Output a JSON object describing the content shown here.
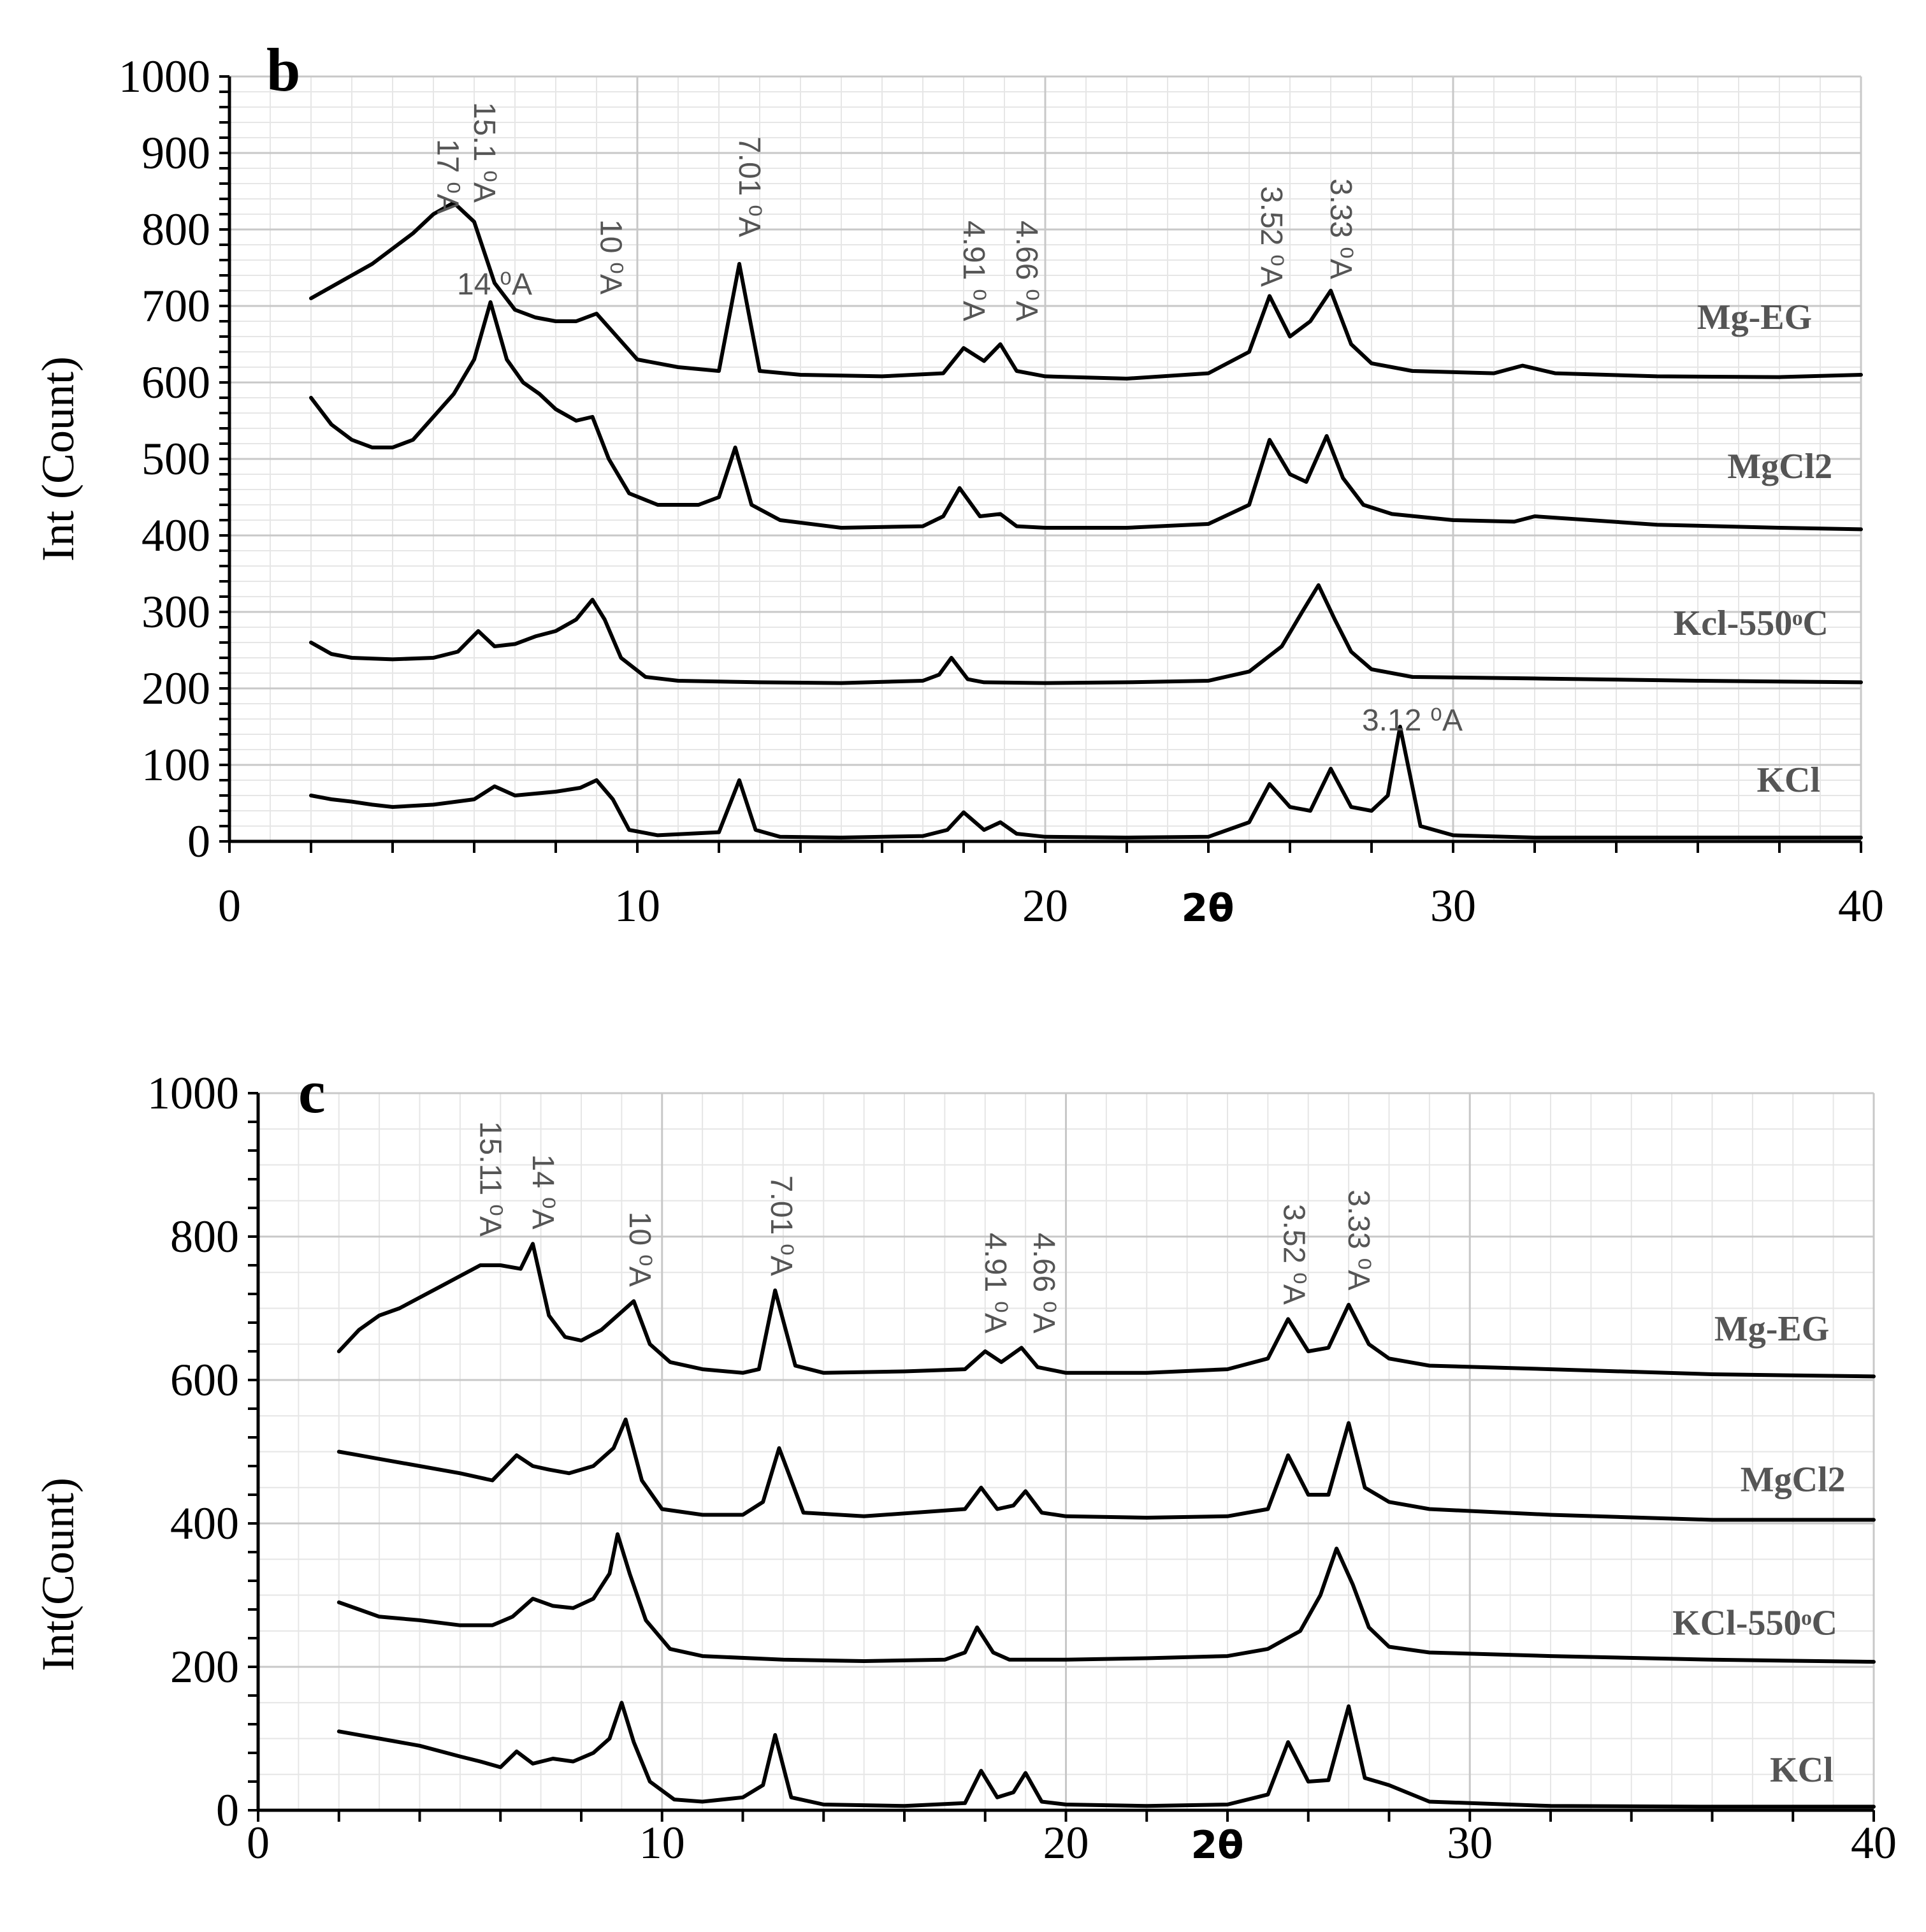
{
  "chart_data": [
    {
      "panel": "b",
      "type": "line",
      "title": "",
      "xlabel": "2θ",
      "ylabel": "Int (Count)",
      "xlim": [
        0,
        40
      ],
      "ylim": [
        0,
        1000
      ],
      "x_ticks": [
        "0",
        "10",
        "20",
        "30",
        "40"
      ],
      "y_ticks": [
        "0",
        "100",
        "200",
        "300",
        "400",
        "500",
        "600",
        "700",
        "800",
        "900",
        "1000"
      ],
      "y_tick_values": [
        0,
        100,
        200,
        300,
        400,
        500,
        600,
        700,
        800,
        900,
        1000
      ],
      "grid": true,
      "series": [
        {
          "name": "Mg-EG",
          "label_x": 38.8,
          "label_y": 670,
          "x": [
            2.0,
            2.5,
            3.0,
            3.5,
            4.0,
            4.5,
            5.0,
            5.5,
            6.0,
            6.5,
            7.0,
            7.5,
            8.0,
            8.5,
            9.0,
            9.5,
            10.0,
            11.0,
            12.0,
            12.5,
            13.0,
            14.0,
            16.0,
            17.5,
            18.0,
            18.5,
            18.9,
            19.3,
            20.0,
            22.0,
            24.0,
            25.0,
            25.5,
            26.0,
            26.5,
            27.0,
            27.5,
            28.0,
            29.0,
            31.0,
            31.7,
            32.5,
            35.0,
            38.0,
            40.0
          ],
          "values": [
            710,
            725,
            740,
            755,
            775,
            795,
            820,
            835,
            810,
            730,
            695,
            685,
            680,
            680,
            690,
            660,
            630,
            620,
            615,
            755,
            615,
            610,
            608,
            612,
            645,
            628,
            650,
            615,
            608,
            605,
            612,
            640,
            713,
            660,
            680,
            720,
            650,
            625,
            615,
            612,
            622,
            612,
            608,
            607,
            610
          ]
        },
        {
          "name": "MgCl2",
          "label_x": 39.3,
          "label_y": 475,
          "x": [
            2.0,
            2.5,
            3.0,
            3.5,
            4.0,
            4.5,
            5.0,
            5.5,
            6.0,
            6.4,
            6.8,
            7.2,
            7.6,
            8.0,
            8.5,
            8.9,
            9.3,
            9.8,
            10.5,
            11.5,
            12.0,
            12.4,
            12.8,
            13.5,
            15.0,
            17.0,
            17.5,
            17.9,
            18.4,
            18.9,
            19.3,
            20.0,
            22.0,
            24.0,
            25.0,
            25.5,
            26.0,
            26.4,
            26.9,
            27.3,
            27.8,
            28.5,
            30.0,
            31.5,
            32.0,
            35.0,
            38.0,
            40.0
          ],
          "values": [
            580,
            545,
            525,
            515,
            515,
            525,
            555,
            585,
            630,
            705,
            630,
            600,
            585,
            565,
            550,
            555,
            500,
            455,
            440,
            440,
            450,
            515,
            440,
            420,
            410,
            412,
            425,
            462,
            425,
            428,
            412,
            410,
            410,
            415,
            440,
            525,
            480,
            470,
            530,
            475,
            440,
            428,
            420,
            418,
            425,
            414,
            410,
            408
          ]
        },
        {
          "name": "Kcl-550ᵒC",
          "label_x": 39.2,
          "label_y": 270,
          "x": [
            2.0,
            2.5,
            3.0,
            4.0,
            5.0,
            5.6,
            6.1,
            6.5,
            7.0,
            7.5,
            8.0,
            8.5,
            8.9,
            9.2,
            9.6,
            10.2,
            11.0,
            13.0,
            15.0,
            17.0,
            17.4,
            17.7,
            18.1,
            18.5,
            20.0,
            22.0,
            24.0,
            25.0,
            25.8,
            26.3,
            26.7,
            27.1,
            27.5,
            28.0,
            29.0,
            32.0,
            36.0,
            40.0
          ],
          "values": [
            260,
            245,
            240,
            238,
            240,
            248,
            275,
            255,
            258,
            268,
            275,
            290,
            316,
            290,
            240,
            215,
            210,
            208,
            207,
            210,
            218,
            240,
            212,
            208,
            207,
            208,
            210,
            222,
            255,
            300,
            335,
            290,
            248,
            225,
            215,
            213,
            210,
            208
          ]
        },
        {
          "name": "KCl",
          "label_x": 39.0,
          "label_y": 65,
          "x": [
            2.0,
            2.5,
            3.0,
            3.5,
            4.0,
            5.0,
            6.0,
            6.5,
            7.0,
            8.0,
            8.6,
            9.0,
            9.4,
            9.8,
            10.5,
            12.0,
            12.5,
            12.9,
            13.5,
            15.0,
            17.0,
            17.6,
            18.0,
            18.5,
            18.9,
            19.3,
            20.0,
            22.0,
            24.0,
            25.0,
            25.5,
            26.0,
            26.5,
            27.0,
            27.5,
            28.0,
            28.4,
            28.7,
            29.2,
            30.0,
            32.0,
            36.0,
            40.0
          ],
          "values": [
            60,
            55,
            52,
            48,
            45,
            48,
            55,
            72,
            60,
            65,
            70,
            80,
            55,
            15,
            8,
            12,
            80,
            15,
            6,
            5,
            7,
            15,
            38,
            15,
            25,
            10,
            6,
            5,
            6,
            25,
            75,
            45,
            40,
            95,
            45,
            40,
            60,
            150,
            20,
            8,
            5,
            5,
            5
          ]
        }
      ],
      "annotations": [
        {
          "text": "17 ⁰A",
          "x": 5.1,
          "y": 820,
          "rotate": true
        },
        {
          "text": "15.1 ⁰A",
          "x": 6.0,
          "y": 835,
          "rotate": true
        },
        {
          "text": "14 ⁰A",
          "x": 6.5,
          "y": 715,
          "rotate": false
        },
        {
          "text": "10 ⁰A",
          "x": 9.1,
          "y": 715,
          "rotate": true
        },
        {
          "text": "7.01 ⁰A",
          "x": 12.5,
          "y": 790,
          "rotate": true
        },
        {
          "text": "4.91 ⁰A",
          "x": 18.0,
          "y": 680,
          "rotate": true
        },
        {
          "text": "4.66 ⁰A",
          "x": 19.3,
          "y": 680,
          "rotate": true
        },
        {
          "text": "3.52 ⁰A",
          "x": 25.3,
          "y": 725,
          "rotate": true
        },
        {
          "text": "3.33 ⁰A",
          "x": 27.0,
          "y": 735,
          "rotate": true
        },
        {
          "text": "3.12 ⁰A",
          "x": 29.0,
          "y": 145,
          "rotate": false
        }
      ]
    },
    {
      "panel": "c",
      "type": "line",
      "title": "",
      "xlabel": "2θ",
      "ylabel": "Int(Count)",
      "xlim": [
        0,
        40
      ],
      "ylim": [
        0,
        1000
      ],
      "x_ticks": [
        "0",
        "10",
        "20",
        "30",
        "40"
      ],
      "y_ticks": [
        "0",
        "200",
        "400",
        "600",
        "800",
        "1000"
      ],
      "y_tick_values": [
        0,
        200,
        400,
        600,
        800,
        1000
      ],
      "grid": true,
      "series": [
        {
          "name": "Mg-EG",
          "label_x": 38.9,
          "label_y": 655,
          "x": [
            2.0,
            2.5,
            3.0,
            3.5,
            4.0,
            4.5,
            5.0,
            5.5,
            6.0,
            6.5,
            6.8,
            7.2,
            7.6,
            8.0,
            8.5,
            9.0,
            9.3,
            9.7,
            10.2,
            11.0,
            12.0,
            12.4,
            12.8,
            13.3,
            14.0,
            16.0,
            17.5,
            18.0,
            18.4,
            18.9,
            19.3,
            20.0,
            22.0,
            24.0,
            25.0,
            25.5,
            26.0,
            26.5,
            27.0,
            27.5,
            28.0,
            29.0,
            32.0,
            36.0,
            40.0
          ],
          "values": [
            640,
            670,
            690,
            700,
            715,
            730,
            745,
            760,
            760,
            755,
            790,
            690,
            660,
            655,
            670,
            695,
            710,
            650,
            625,
            615,
            610,
            615,
            725,
            620,
            610,
            612,
            615,
            640,
            625,
            645,
            618,
            610,
            610,
            615,
            630,
            685,
            640,
            645,
            705,
            650,
            630,
            620,
            615,
            608,
            605
          ]
        },
        {
          "name": "MgCl2",
          "label_x": 39.3,
          "label_y": 445,
          "x": [
            2.0,
            2.5,
            3.0,
            4.0,
            5.0,
            5.8,
            6.4,
            6.8,
            7.2,
            7.7,
            8.3,
            8.8,
            9.1,
            9.5,
            10.0,
            11.0,
            12.0,
            12.5,
            12.9,
            13.5,
            15.0,
            17.5,
            17.9,
            18.3,
            18.7,
            19.0,
            19.4,
            20.0,
            22.0,
            24.0,
            25.0,
            25.5,
            26.0,
            26.5,
            27.0,
            27.4,
            28.0,
            29.0,
            32.0,
            36.0,
            40.0
          ],
          "values": [
            500,
            495,
            490,
            480,
            470,
            460,
            495,
            480,
            475,
            470,
            480,
            505,
            545,
            460,
            420,
            412,
            412,
            430,
            505,
            415,
            410,
            420,
            450,
            420,
            425,
            445,
            415,
            410,
            408,
            410,
            420,
            495,
            440,
            440,
            540,
            450,
            430,
            420,
            412,
            405,
            405
          ]
        },
        {
          "name": "KCl-550ᵒC",
          "label_x": 39.1,
          "label_y": 245,
          "x": [
            2.0,
            2.5,
            3.0,
            4.0,
            5.0,
            5.8,
            6.3,
            6.8,
            7.3,
            7.8,
            8.3,
            8.7,
            8.9,
            9.2,
            9.6,
            10.2,
            11.0,
            13.0,
            15.0,
            17.0,
            17.5,
            17.8,
            18.2,
            18.6,
            20.0,
            22.0,
            24.0,
            25.0,
            25.8,
            26.3,
            26.7,
            27.1,
            27.5,
            28.0,
            29.0,
            32.0,
            36.0,
            40.0
          ],
          "values": [
            290,
            280,
            270,
            265,
            258,
            258,
            270,
            295,
            285,
            282,
            295,
            330,
            385,
            330,
            265,
            225,
            215,
            210,
            208,
            210,
            220,
            255,
            220,
            210,
            210,
            212,
            215,
            225,
            250,
            300,
            365,
            315,
            255,
            228,
            220,
            215,
            210,
            207
          ]
        },
        {
          "name": "KCl",
          "label_x": 39.0,
          "label_y": 40,
          "x": [
            2.0,
            2.5,
            3.0,
            4.0,
            5.0,
            5.5,
            6.0,
            6.4,
            6.8,
            7.3,
            7.8,
            8.3,
            8.7,
            9.0,
            9.3,
            9.7,
            10.3,
            11.0,
            12.0,
            12.5,
            12.8,
            13.2,
            14.0,
            16.0,
            17.5,
            17.9,
            18.3,
            18.7,
            19.0,
            19.4,
            20.0,
            22.0,
            24.0,
            25.0,
            25.5,
            26.0,
            26.5,
            27.0,
            27.4,
            28.0,
            29.0,
            32.0,
            36.0,
            40.0
          ],
          "values": [
            110,
            105,
            100,
            90,
            75,
            68,
            60,
            82,
            65,
            72,
            68,
            80,
            100,
            150,
            95,
            40,
            15,
            12,
            18,
            35,
            105,
            18,
            8,
            6,
            10,
            55,
            18,
            25,
            52,
            12,
            8,
            6,
            8,
            22,
            95,
            40,
            42,
            145,
            45,
            35,
            12,
            6,
            5,
            5
          ]
        }
      ],
      "annotations": [
        {
          "text": "15.11 ⁰A",
          "x": 5.5,
          "y": 800,
          "rotate": true
        },
        {
          "text": "14 ⁰A",
          "x": 6.8,
          "y": 810,
          "rotate": true
        },
        {
          "text": "10 ⁰A",
          "x": 9.2,
          "y": 730,
          "rotate": true
        },
        {
          "text": "7.01 ⁰A",
          "x": 12.7,
          "y": 745,
          "rotate": true
        },
        {
          "text": "4.91 ⁰A",
          "x": 18.0,
          "y": 665,
          "rotate": true
        },
        {
          "text": "4.66 ⁰A",
          "x": 19.2,
          "y": 665,
          "rotate": true
        },
        {
          "text": "3.52 ⁰A",
          "x": 25.4,
          "y": 705,
          "rotate": true
        },
        {
          "text": "3.33 ⁰A",
          "x": 27.0,
          "y": 725,
          "rotate": true
        }
      ]
    }
  ]
}
